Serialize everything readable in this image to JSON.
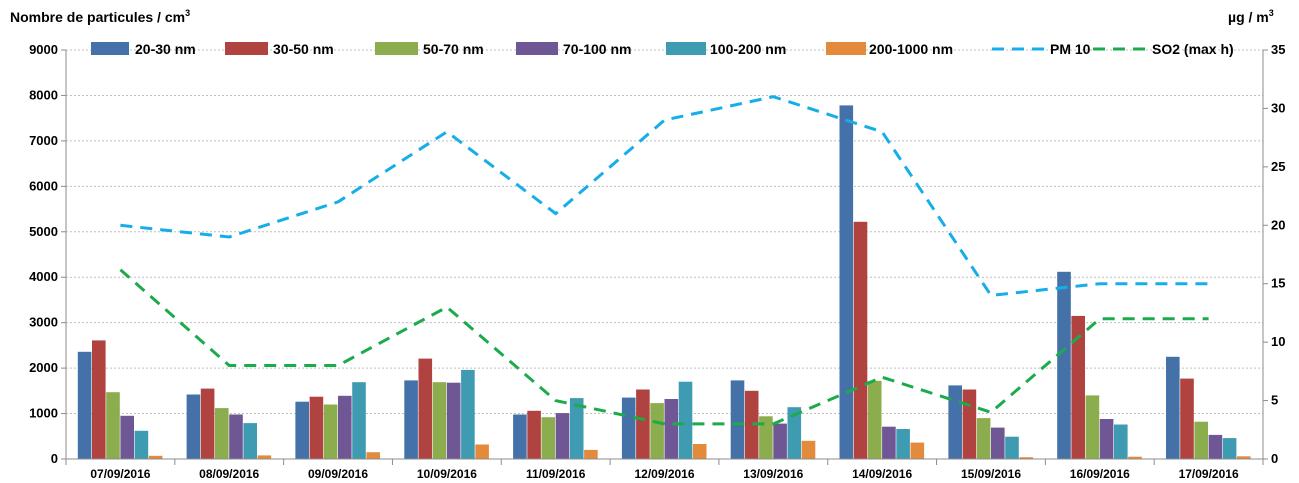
{
  "chart_data": {
    "type": "bar",
    "left_axis_title": "Nombre de particules / cm",
    "left_axis_title_sup": "3",
    "right_axis_title": "µg / m",
    "right_axis_title_sup": "3",
    "y_left_range": [
      0,
      9000
    ],
    "y_left_ticks": [
      "0",
      "1000",
      "2000",
      "3000",
      "4000",
      "5000",
      "6000",
      "7000",
      "8000",
      "9000"
    ],
    "y_right_range": [
      0,
      35
    ],
    "y_right_ticks": [
      "0",
      "5",
      "10",
      "15",
      "20",
      "25",
      "30",
      "35"
    ],
    "grid": true,
    "legend_position": "top",
    "categories": [
      "07/09/2016",
      "08/09/2016",
      "09/09/2016",
      "10/09/2016",
      "11/09/2016",
      "12/09/2016",
      "13/09/2016",
      "14/09/2016",
      "15/09/2016",
      "16/09/2016",
      "17/09/2016"
    ],
    "bar_series": [
      {
        "name": "20-30 nm",
        "color": "#4472A8",
        "values": [
          2360,
          1420,
          1260,
          1730,
          980,
          1350,
          1730,
          7780,
          1620,
          4120,
          2250
        ]
      },
      {
        "name": "30-50 nm",
        "color": "#B0433F",
        "values": [
          2610,
          1550,
          1370,
          2210,
          1060,
          1530,
          1500,
          5220,
          1530,
          3150,
          1770
        ]
      },
      {
        "name": "50-70 nm",
        "color": "#8BAD4E",
        "values": [
          1470,
          1120,
          1200,
          1690,
          920,
          1230,
          940,
          1720,
          900,
          1400,
          820
        ]
      },
      {
        "name": "70-100 nm",
        "color": "#6F5694",
        "values": [
          950,
          980,
          1390,
          1680,
          1010,
          1320,
          780,
          710,
          690,
          880,
          530
        ]
      },
      {
        "name": "100-200 nm",
        "color": "#3E9BB2",
        "values": [
          620,
          790,
          1690,
          1960,
          1340,
          1700,
          1140,
          660,
          490,
          760,
          460
        ]
      },
      {
        "name": "200-1000 nm",
        "color": "#E48A3D",
        "values": [
          70,
          80,
          150,
          320,
          200,
          330,
          400,
          360,
          40,
          50,
          60
        ]
      }
    ],
    "line_series": [
      {
        "name": "PM 10",
        "color": "#15AEE8",
        "axis": "right",
        "values": [
          20,
          19,
          22,
          28,
          21,
          29,
          31,
          28,
          14,
          15,
          15
        ]
      },
      {
        "name": "SO2 (max h)",
        "color": "#1CAB4C",
        "axis": "right",
        "values": [
          16.2,
          8,
          8,
          13,
          5,
          3,
          3,
          7,
          4,
          12,
          12
        ]
      }
    ]
  }
}
